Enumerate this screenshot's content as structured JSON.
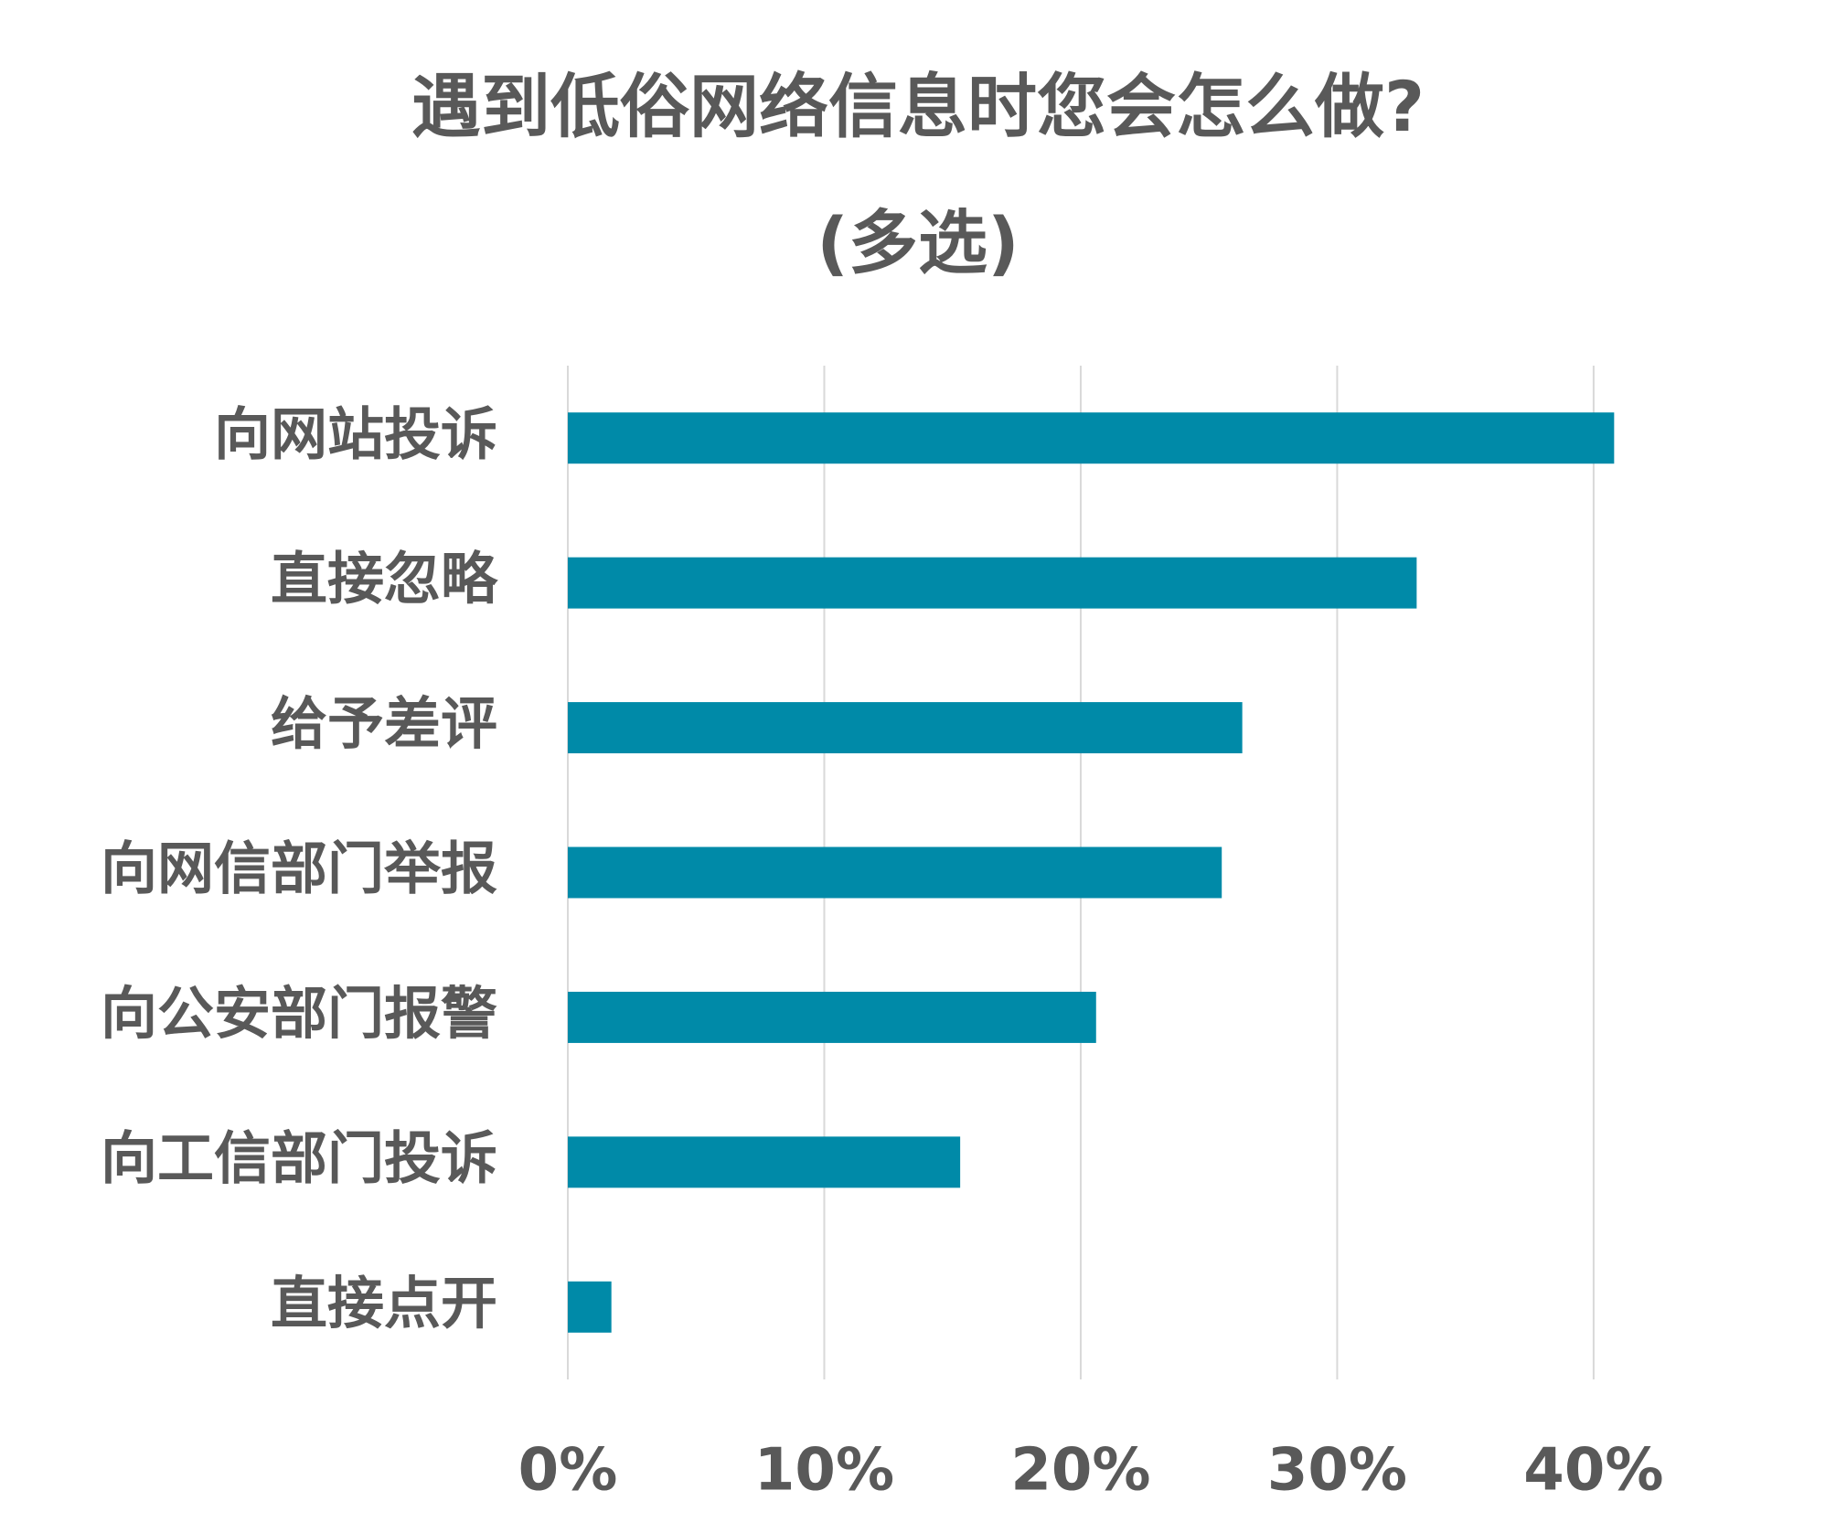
{
  "chart_data": {
    "type": "bar",
    "orientation": "horizontal",
    "title": "遇到低俗网络信息时您会怎么做?",
    "subtitle": "(多选)",
    "categories": [
      "向网站投诉",
      "直接忽略",
      "给予差评",
      "向网信部门举报",
      "向公安部门报警",
      "向工信部门投诉",
      "直接点开"
    ],
    "values": [
      40.8,
      33.1,
      26.3,
      25.5,
      20.6,
      15.3,
      1.7
    ],
    "color": "#008aa8",
    "xlim": [
      0,
      42
    ],
    "xticks": [
      {
        "value": 0,
        "label": "0%"
      },
      {
        "value": 10,
        "label": "10%"
      },
      {
        "value": 20,
        "label": "20%"
      },
      {
        "value": 30,
        "label": "30%"
      },
      {
        "value": 40,
        "label": "40%"
      }
    ],
    "grid": true
  }
}
